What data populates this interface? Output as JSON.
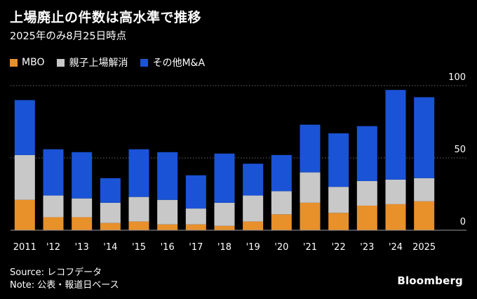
{
  "title": "上場廃止の件数は高水準で推移",
  "subtitle": "2025年のみ8月25日時点",
  "brand": "Bloomberg",
  "footer": {
    "source": "Source: レコフデータ",
    "note": "Note: 公表・報道日ベース"
  },
  "chart_data": {
    "type": "bar",
    "stacked": true,
    "categories": [
      "2011",
      "'12",
      "'13",
      "'14",
      "'15",
      "'16",
      "'17",
      "'18",
      "'19",
      "'20",
      "'21",
      "'22",
      "'23",
      "'24",
      "2025"
    ],
    "series": [
      {
        "name": "MBO",
        "color": "#e8902a",
        "values": [
          21,
          9,
          9,
          5,
          6,
          4,
          4,
          3,
          6,
          11,
          19,
          12,
          17,
          18,
          20
        ]
      },
      {
        "name": "親子上場解消",
        "color": "#c8c8c8",
        "values": [
          31,
          15,
          13,
          14,
          17,
          17,
          11,
          16,
          18,
          16,
          21,
          18,
          17,
          17,
          16
        ]
      },
      {
        "name": "その他M&A",
        "color": "#1a53d6",
        "values": [
          38,
          32,
          32,
          17,
          33,
          33,
          23,
          34,
          22,
          25,
          33,
          37,
          38,
          62,
          56
        ]
      }
    ],
    "ylim": [
      0,
      100
    ],
    "yticks": [
      0,
      50,
      100
    ],
    "grid": true,
    "legend": "top-left"
  }
}
